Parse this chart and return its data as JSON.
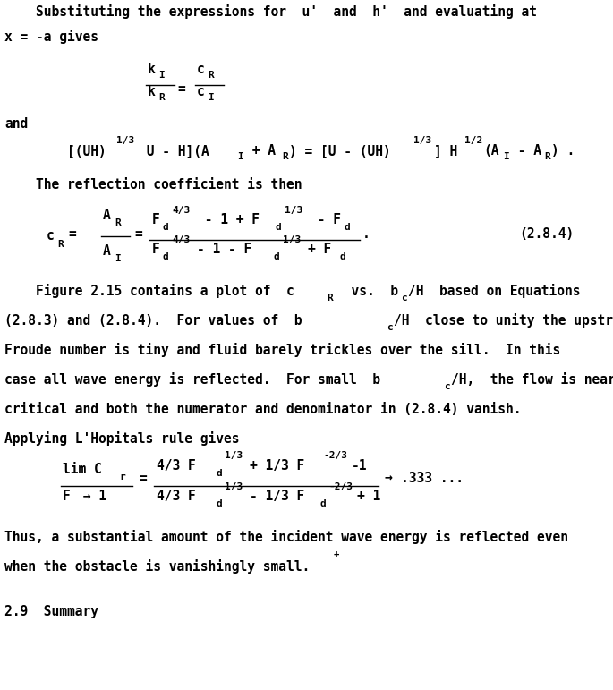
{
  "bg_color": "#ffffff",
  "text_color": "#000000",
  "figsize": [
    6.85,
    7.71
  ],
  "dpi": 100,
  "fs": 10.5,
  "fss": 8.0,
  "fss2": 7.5
}
